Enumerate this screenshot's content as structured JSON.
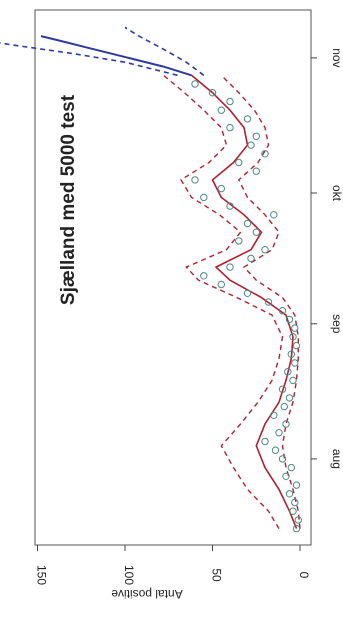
{
  "chart_data": {
    "type": "line",
    "title": "Sjælland med 5000 test",
    "ylabel": "Antal positive",
    "xlabel": "",
    "ylim": [
      0,
      160
    ],
    "y_ticks": [
      0,
      50,
      100,
      150
    ],
    "x_range": [
      "2020-07-15",
      "2020-11-09"
    ],
    "x_ticks": [
      {
        "label": "aug",
        "date": "2020-08-01"
      },
      {
        "label": "sep",
        "date": "2020-09-01"
      },
      {
        "label": "okt",
        "date": "2020-10-01"
      },
      {
        "label": "nov",
        "date": "2020-11-01"
      }
    ],
    "orientation": "rotated-90-clockwise",
    "colors": {
      "observed": "#4d8a80",
      "fit": "#b02030",
      "projection": "#2e3aa0"
    },
    "observed_points": [
      {
        "x": "2020-07-16",
        "y": 2
      },
      {
        "x": "2020-07-18",
        "y": 1
      },
      {
        "x": "2020-07-20",
        "y": 4
      },
      {
        "x": "2020-07-22",
        "y": 3
      },
      {
        "x": "2020-07-24",
        "y": 6
      },
      {
        "x": "2020-07-26",
        "y": 2
      },
      {
        "x": "2020-07-28",
        "y": 8
      },
      {
        "x": "2020-07-30",
        "y": 5
      },
      {
        "x": "2020-08-01",
        "y": 10
      },
      {
        "x": "2020-08-03",
        "y": 14
      },
      {
        "x": "2020-08-05",
        "y": 20
      },
      {
        "x": "2020-08-07",
        "y": 12
      },
      {
        "x": "2020-08-09",
        "y": 8
      },
      {
        "x": "2020-08-11",
        "y": 15
      },
      {
        "x": "2020-08-13",
        "y": 9
      },
      {
        "x": "2020-08-15",
        "y": 6
      },
      {
        "x": "2020-08-17",
        "y": 10
      },
      {
        "x": "2020-08-19",
        "y": 4
      },
      {
        "x": "2020-08-21",
        "y": 7
      },
      {
        "x": "2020-08-23",
        "y": 3
      },
      {
        "x": "2020-08-25",
        "y": 5
      },
      {
        "x": "2020-08-27",
        "y": 2
      },
      {
        "x": "2020-08-29",
        "y": 4
      },
      {
        "x": "2020-08-31",
        "y": 3
      },
      {
        "x": "2020-09-02",
        "y": 6
      },
      {
        "x": "2020-09-04",
        "y": 10
      },
      {
        "x": "2020-09-06",
        "y": 18
      },
      {
        "x": "2020-09-08",
        "y": 30
      },
      {
        "x": "2020-09-10",
        "y": 45
      },
      {
        "x": "2020-09-12",
        "y": 55
      },
      {
        "x": "2020-09-14",
        "y": 40
      },
      {
        "x": "2020-09-16",
        "y": 28
      },
      {
        "x": "2020-09-18",
        "y": 20
      },
      {
        "x": "2020-09-20",
        "y": 35
      },
      {
        "x": "2020-09-22",
        "y": 25
      },
      {
        "x": "2020-09-24",
        "y": 30
      },
      {
        "x": "2020-09-26",
        "y": 15
      },
      {
        "x": "2020-09-28",
        "y": 40
      },
      {
        "x": "2020-09-30",
        "y": 55
      },
      {
        "x": "2020-10-02",
        "y": 45
      },
      {
        "x": "2020-10-04",
        "y": 60
      },
      {
        "x": "2020-10-06",
        "y": 25
      },
      {
        "x": "2020-10-08",
        "y": 35
      },
      {
        "x": "2020-10-10",
        "y": 20
      },
      {
        "x": "2020-10-12",
        "y": 28
      },
      {
        "x": "2020-10-14",
        "y": 25
      },
      {
        "x": "2020-10-16",
        "y": 40
      },
      {
        "x": "2020-10-18",
        "y": 30
      },
      {
        "x": "2020-10-20",
        "y": 45
      },
      {
        "x": "2020-10-22",
        "y": 40
      },
      {
        "x": "2020-10-24",
        "y": 50
      },
      {
        "x": "2020-10-26",
        "y": 60
      }
    ],
    "fit_line": [
      {
        "x": "2020-07-16",
        "y": 2
      },
      {
        "x": "2020-07-20",
        "y": 6
      },
      {
        "x": "2020-07-25",
        "y": 12
      },
      {
        "x": "2020-07-30",
        "y": 20
      },
      {
        "x": "2020-08-04",
        "y": 25
      },
      {
        "x": "2020-08-09",
        "y": 20
      },
      {
        "x": "2020-08-14",
        "y": 12
      },
      {
        "x": "2020-08-19",
        "y": 8
      },
      {
        "x": "2020-08-24",
        "y": 5
      },
      {
        "x": "2020-08-29",
        "y": 4
      },
      {
        "x": "2020-09-03",
        "y": 8
      },
      {
        "x": "2020-09-07",
        "y": 22
      },
      {
        "x": "2020-09-11",
        "y": 40
      },
      {
        "x": "2020-09-14",
        "y": 48
      },
      {
        "x": "2020-09-18",
        "y": 28
      },
      {
        "x": "2020-09-22",
        "y": 22
      },
      {
        "x": "2020-09-26",
        "y": 32
      },
      {
        "x": "2020-09-30",
        "y": 45
      },
      {
        "x": "2020-10-04",
        "y": 50
      },
      {
        "x": "2020-10-08",
        "y": 38
      },
      {
        "x": "2020-10-12",
        "y": 30
      },
      {
        "x": "2020-10-16",
        "y": 32
      },
      {
        "x": "2020-10-20",
        "y": 40
      },
      {
        "x": "2020-10-24",
        "y": 50
      },
      {
        "x": "2020-10-28",
        "y": 62
      }
    ],
    "fit_upper": [
      {
        "x": "2020-07-16",
        "y": 12
      },
      {
        "x": "2020-07-20",
        "y": 18
      },
      {
        "x": "2020-07-25",
        "y": 30
      },
      {
        "x": "2020-07-30",
        "y": 38
      },
      {
        "x": "2020-08-04",
        "y": 45
      },
      {
        "x": "2020-08-09",
        "y": 34
      },
      {
        "x": "2020-08-14",
        "y": 24
      },
      {
        "x": "2020-08-19",
        "y": 16
      },
      {
        "x": "2020-08-24",
        "y": 12
      },
      {
        "x": "2020-08-29",
        "y": 10
      },
      {
        "x": "2020-09-03",
        "y": 16
      },
      {
        "x": "2020-09-07",
        "y": 36
      },
      {
        "x": "2020-09-11",
        "y": 58
      },
      {
        "x": "2020-09-14",
        "y": 65
      },
      {
        "x": "2020-09-18",
        "y": 42
      },
      {
        "x": "2020-09-22",
        "y": 34
      },
      {
        "x": "2020-09-26",
        "y": 46
      },
      {
        "x": "2020-09-30",
        "y": 62
      },
      {
        "x": "2020-10-04",
        "y": 68
      },
      {
        "x": "2020-10-08",
        "y": 52
      },
      {
        "x": "2020-10-12",
        "y": 42
      },
      {
        "x": "2020-10-16",
        "y": 45
      },
      {
        "x": "2020-10-20",
        "y": 55
      },
      {
        "x": "2020-10-24",
        "y": 66
      },
      {
        "x": "2020-10-28",
        "y": 78
      }
    ],
    "fit_lower": [
      {
        "x": "2020-07-16",
        "y": 0
      },
      {
        "x": "2020-07-20",
        "y": 1
      },
      {
        "x": "2020-07-25",
        "y": 4
      },
      {
        "x": "2020-07-30",
        "y": 8
      },
      {
        "x": "2020-08-04",
        "y": 10
      },
      {
        "x": "2020-08-09",
        "y": 8
      },
      {
        "x": "2020-08-14",
        "y": 4
      },
      {
        "x": "2020-08-19",
        "y": 2
      },
      {
        "x": "2020-08-24",
        "y": 1
      },
      {
        "x": "2020-08-29",
        "y": 1
      },
      {
        "x": "2020-09-03",
        "y": 3
      },
      {
        "x": "2020-09-07",
        "y": 10
      },
      {
        "x": "2020-09-11",
        "y": 25
      },
      {
        "x": "2020-09-14",
        "y": 32
      },
      {
        "x": "2020-09-18",
        "y": 16
      },
      {
        "x": "2020-09-22",
        "y": 12
      },
      {
        "x": "2020-09-26",
        "y": 20
      },
      {
        "x": "2020-09-30",
        "y": 30
      },
      {
        "x": "2020-10-04",
        "y": 35
      },
      {
        "x": "2020-10-08",
        "y": 24
      },
      {
        "x": "2020-10-12",
        "y": 18
      },
      {
        "x": "2020-10-16",
        "y": 20
      },
      {
        "x": "2020-10-20",
        "y": 26
      },
      {
        "x": "2020-10-24",
        "y": 35
      },
      {
        "x": "2020-10-28",
        "y": 45
      }
    ],
    "projection": [
      {
        "x": "2020-10-28",
        "y": 62
      },
      {
        "x": "2020-10-30",
        "y": 78
      },
      {
        "x": "2020-11-01",
        "y": 98
      },
      {
        "x": "2020-11-03",
        "y": 118
      },
      {
        "x": "2020-11-05",
        "y": 138
      },
      {
        "x": "2020-11-06",
        "y": 148
      }
    ],
    "projection_upper": [
      {
        "x": "2020-10-28",
        "y": 70
      },
      {
        "x": "2020-10-31",
        "y": 100
      },
      {
        "x": "2020-11-02",
        "y": 130
      },
      {
        "x": "2020-11-04",
        "y": 165
      },
      {
        "x": "2020-11-06",
        "y": 195
      }
    ],
    "projection_lower": [
      {
        "x": "2020-10-28",
        "y": 55
      },
      {
        "x": "2020-10-31",
        "y": 65
      },
      {
        "x": "2020-11-03",
        "y": 78
      },
      {
        "x": "2020-11-06",
        "y": 92
      },
      {
        "x": "2020-11-08",
        "y": 100
      }
    ]
  }
}
